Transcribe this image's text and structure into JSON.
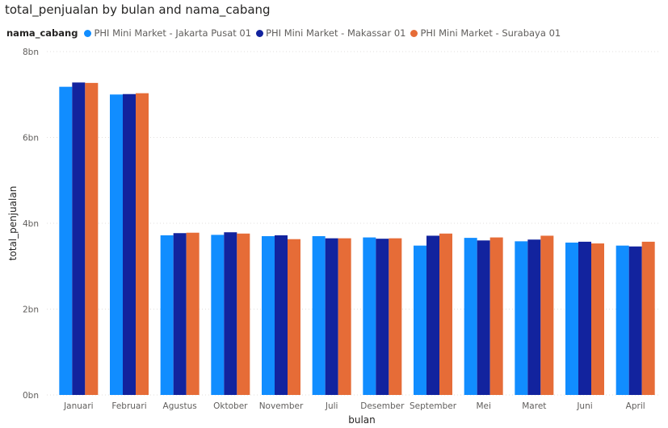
{
  "chart_data": {
    "type": "bar",
    "title": "total_penjualan by bulan and nama_cabang",
    "xlabel": "bulan",
    "ylabel": "total_penjualan",
    "legend_title": "nama_cabang",
    "legend_position": "top-left",
    "grid": true,
    "ylim": [
      0,
      8000000000
    ],
    "yticks": [
      {
        "value": 0,
        "label": "0bn"
      },
      {
        "value": 2000000000,
        "label": "2bn"
      },
      {
        "value": 4000000000,
        "label": "4bn"
      },
      {
        "value": 6000000000,
        "label": "6bn"
      },
      {
        "value": 8000000000,
        "label": "8bn"
      }
    ],
    "categories": [
      "Januari",
      "Februari",
      "Agustus",
      "Oktober",
      "November",
      "Juli",
      "Desember",
      "September",
      "Mei",
      "Maret",
      "Juni",
      "April"
    ],
    "series": [
      {
        "name": "PHI Mini Market - Jakarta Pusat 01",
        "color": "#118DFF",
        "values": [
          7180000000,
          7000000000,
          3720000000,
          3730000000,
          3700000000,
          3700000000,
          3670000000,
          3480000000,
          3660000000,
          3580000000,
          3550000000,
          3480000000
        ]
      },
      {
        "name": "PHI Mini Market - Makassar 01",
        "color": "#12239E",
        "values": [
          7280000000,
          7010000000,
          3770000000,
          3790000000,
          3720000000,
          3650000000,
          3640000000,
          3710000000,
          3600000000,
          3620000000,
          3570000000,
          3460000000
        ]
      },
      {
        "name": "PHI Mini Market - Surabaya 01",
        "color": "#E66C37",
        "values": [
          7270000000,
          7030000000,
          3780000000,
          3760000000,
          3630000000,
          3650000000,
          3650000000,
          3760000000,
          3670000000,
          3710000000,
          3530000000,
          3570000000
        ]
      }
    ]
  }
}
